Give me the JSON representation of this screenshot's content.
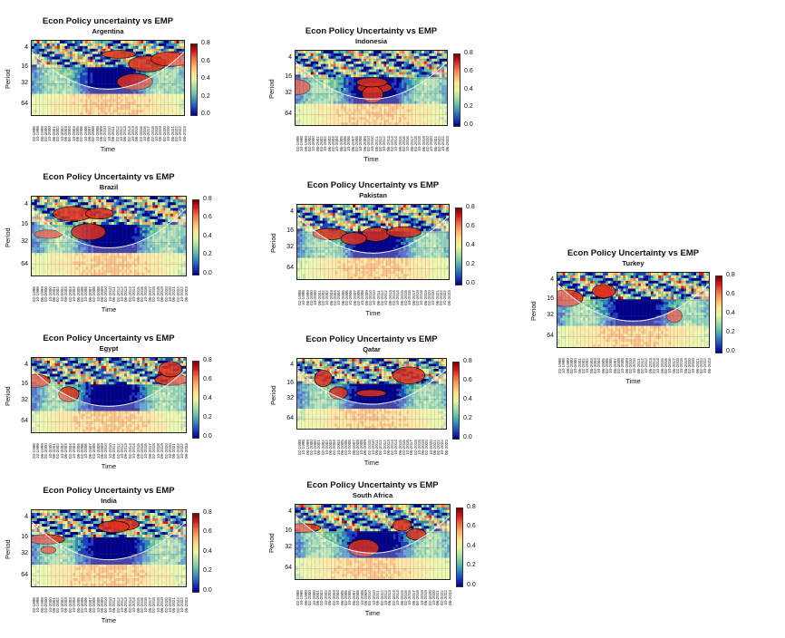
{
  "colorbar": {
    "ticks": [
      "0.8",
      "0.6",
      "0.4",
      "0.2",
      "0.0"
    ],
    "colors": [
      "#7a0000",
      "#d7191c",
      "#f46d43",
      "#fdae61",
      "#fee08b",
      "#e6f598",
      "#abdda4",
      "#66c2a5",
      "#3288bd",
      "#1f3fbf",
      "#00008b"
    ]
  },
  "axes": {
    "ylabel": "Period",
    "xlabel": "Time",
    "yticks": [
      "4",
      "16",
      "32",
      "64"
    ],
    "xticks": [
      "02-1998",
      "10-1998",
      "06-1999",
      "02-2000",
      "10-2000",
      "06-2001",
      "02-2002",
      "10-2002",
      "06-2003",
      "02-2004",
      "10-2004",
      "06-2005",
      "02-2006",
      "10-2006",
      "06-2007",
      "02-2008",
      "10-2008",
      "06-2009",
      "02-2010",
      "10-2010",
      "06-2011",
      "02-2012",
      "10-2012",
      "06-2013",
      "02-2014",
      "10-2014",
      "06-2015",
      "02-2016",
      "10-2016",
      "06-2017",
      "02-2018",
      "10-2018",
      "06-2019",
      "02-2020",
      "10-2020",
      "06-2021",
      "02-2022",
      "10-2022",
      "06-2023"
    ]
  },
  "chart_data": [
    {
      "type": "heatmap",
      "title": "Econ Policy uncertainty vs EMP",
      "subtitle": "Argentina",
      "xlabel": "Time",
      "ylabel": "Period",
      "legend": "right",
      "clim": [
        0,
        0.9
      ]
    },
    {
      "type": "heatmap",
      "title": "Econ Policy Uncertainty vs EMP",
      "subtitle": "Indonesia",
      "xlabel": "Time",
      "ylabel": "Period",
      "legend": "right",
      "clim": [
        0,
        0.9
      ]
    },
    {
      "type": "heatmap",
      "title": "Econ Policy Uncertainty vs EMP",
      "subtitle": "Brazil",
      "xlabel": "Time",
      "ylabel": "Period",
      "legend": "right",
      "clim": [
        0,
        0.9
      ]
    },
    {
      "type": "heatmap",
      "title": "Econ Policy Uncertainty vs EMP",
      "subtitle": "Pakistan",
      "xlabel": "Time",
      "ylabel": "Period",
      "legend": "right",
      "clim": [
        0,
        0.9
      ]
    },
    {
      "type": "heatmap",
      "title": "Econ Policy Uncertainty vs EMP",
      "subtitle": "Turkey",
      "xlabel": "Time",
      "ylabel": "Period",
      "legend": "right",
      "clim": [
        0,
        0.9
      ]
    },
    {
      "type": "heatmap",
      "title": "Econ Policy Uncertainty vs EMP",
      "subtitle": "Egypt",
      "xlabel": "Time",
      "ylabel": "Period",
      "legend": "right",
      "clim": [
        0,
        0.9
      ]
    },
    {
      "type": "heatmap",
      "title": "Econ Policy Uncertainty vs EMP",
      "subtitle": "Qatar",
      "xlabel": "Time",
      "ylabel": "Period",
      "legend": "right",
      "clim": [
        0,
        0.9
      ]
    },
    {
      "type": "heatmap",
      "title": "Econ Policy Uncertainty vs EMP",
      "subtitle": "India",
      "xlabel": "Time",
      "ylabel": "Period",
      "legend": "right",
      "clim": [
        0,
        0.9
      ]
    },
    {
      "type": "heatmap",
      "title": "Econ Policy Uncertainty vs EMP",
      "subtitle": "South Africa",
      "xlabel": "Time",
      "ylabel": "Period",
      "legend": "right",
      "clim": [
        0,
        0.9
      ]
    }
  ]
}
